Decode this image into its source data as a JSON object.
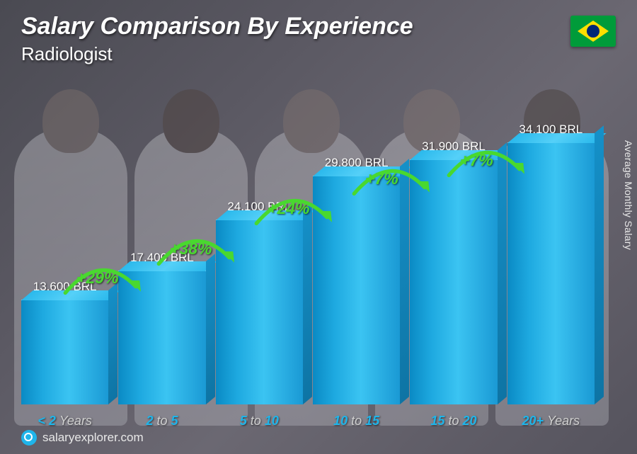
{
  "header": {
    "title": "Salary Comparison By Experience",
    "subtitle": "Radiologist",
    "country": "Brazil"
  },
  "yaxis_label": "Average Monthly Salary",
  "footer": "salaryexplorer.com",
  "chart": {
    "type": "bar",
    "currency": "BRL",
    "max_value": 34100,
    "bar_color_main": "#1ea9e0",
    "bar_color_top": "#3bc4f2",
    "bar_color_side": "#0e74a4",
    "growth_color": "#49d82f",
    "xlabel_color": "#1fb5ea",
    "background_tint": "#5a5862",
    "bars": [
      {
        "category_prefix": "< 2",
        "category_suffix": "Years",
        "value": 13600,
        "value_label": "13,600 BRL",
        "growth": null
      },
      {
        "category_prefix": "2",
        "category_mid": "to",
        "category_after": "5",
        "value": 17400,
        "value_label": "17,400 BRL",
        "growth": "+29%"
      },
      {
        "category_prefix": "5",
        "category_mid": "to",
        "category_after": "10",
        "value": 24100,
        "value_label": "24,100 BRL",
        "growth": "+38%"
      },
      {
        "category_prefix": "10",
        "category_mid": "to",
        "category_after": "15",
        "value": 29800,
        "value_label": "29,800 BRL",
        "growth": "+24%"
      },
      {
        "category_prefix": "15",
        "category_mid": "to",
        "category_after": "20",
        "value": 31900,
        "value_label": "31,900 BRL",
        "growth": "+7%"
      },
      {
        "category_prefix": "20+",
        "category_suffix": "Years",
        "value": 34100,
        "value_label": "34,100 BRL",
        "growth": "+7%"
      }
    ]
  }
}
